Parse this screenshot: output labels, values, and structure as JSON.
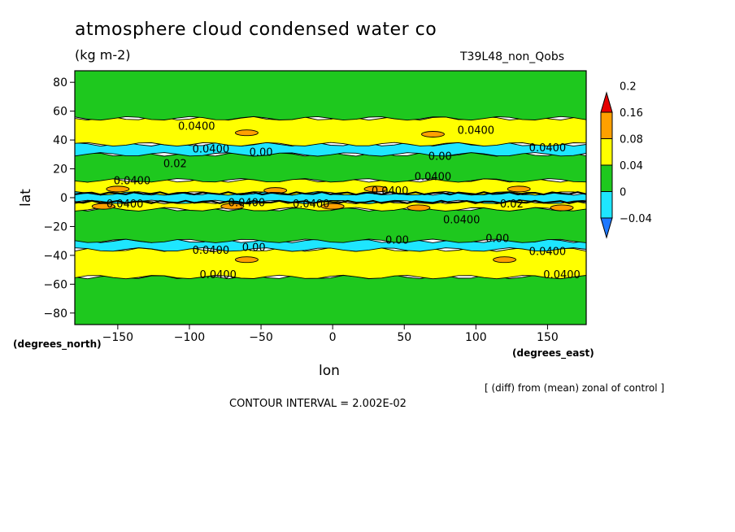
{
  "chart_data": {
    "type": "heatmap",
    "title": "atmosphere cloud condensed water co",
    "units": "(kg m-2)",
    "run_name": "T39L48_non_Qobs",
    "xlabel": "lon",
    "ylabel": "lat",
    "x_units": "(degrees_east)",
    "y_units": "(degrees_north)",
    "xlim": [
      -180,
      177
    ],
    "ylim": [
      -88,
      88
    ],
    "x_ticks": [
      -150,
      -100,
      -50,
      0,
      50,
      100,
      150
    ],
    "y_ticks": [
      -80,
      -60,
      -40,
      -20,
      0,
      20,
      40,
      60,
      80
    ],
    "colorbar": {
      "levels": [
        "-0.04",
        "0",
        "0.04",
        "0.08",
        "0.16",
        "0.2"
      ],
      "colors": [
        "#1e78ff",
        "#1ee6ff",
        "#1ec81e",
        "#ffff00",
        "#ffa000",
        "#e60000"
      ]
    },
    "bands": [
      {
        "lat_min": -88,
        "lat_max": -55,
        "value": 0.02
      },
      {
        "lat_min": -55,
        "lat_max": -36,
        "value": 0.05
      },
      {
        "lat_min": -36,
        "lat_max": -30,
        "value": -0.02
      },
      {
        "lat_min": -30,
        "lat_max": -8,
        "value": 0.02
      },
      {
        "lat_min": -8,
        "lat_max": -3,
        "value": 0.05
      },
      {
        "lat_min": -3,
        "lat_max": 3,
        "value": -0.02
      },
      {
        "lat_min": 3,
        "lat_max": 12,
        "value": 0.05
      },
      {
        "lat_min": 12,
        "lat_max": 30,
        "value": 0.02
      },
      {
        "lat_min": 30,
        "lat_max": 37,
        "value": -0.02
      },
      {
        "lat_min": 37,
        "lat_max": 55,
        "value": 0.05
      },
      {
        "lat_min": 55,
        "lat_max": 88,
        "value": 0.02
      }
    ],
    "patches": [
      {
        "lon": -70,
        "lat": -6,
        "value": 0.1
      },
      {
        "lon": -160,
        "lat": -6,
        "value": 0.1
      },
      {
        "lon": 0,
        "lat": -6,
        "value": 0.1
      },
      {
        "lon": 60,
        "lat": -7,
        "value": 0.1
      },
      {
        "lon": 160,
        "lat": -7,
        "value": 0.1
      },
      {
        "lon": -150,
        "lat": 6,
        "value": 0.1
      },
      {
        "lon": -40,
        "lat": 5,
        "value": 0.1
      },
      {
        "lon": 30,
        "lat": 6,
        "value": 0.1
      },
      {
        "lon": 130,
        "lat": 6,
        "value": 0.1
      },
      {
        "lon": -60,
        "lat": 45,
        "value": 0.1
      },
      {
        "lon": 70,
        "lat": 44,
        "value": 0.1
      },
      {
        "lon": -60,
        "lat": -43,
        "value": 0.1
      },
      {
        "lon": 120,
        "lat": -43,
        "value": 0.1
      }
    ],
    "contour_labels": [
      {
        "text": "0.0400",
        "lon": -95,
        "lat": 50
      },
      {
        "text": "0.0400",
        "lon": 100,
        "lat": 47
      },
      {
        "text": "0.0400",
        "lon": -85,
        "lat": 34
      },
      {
        "text": "0.00",
        "lon": -50,
        "lat": 32
      },
      {
        "text": "0.0400",
        "lon": 150,
        "lat": 35
      },
      {
        "text": "0.00",
        "lon": 75,
        "lat": 29
      },
      {
        "text": "0.02",
        "lon": -110,
        "lat": 24
      },
      {
        "text": "0.0400",
        "lon": -140,
        "lat": 12
      },
      {
        "text": "0.0400",
        "lon": 70,
        "lat": 15
      },
      {
        "text": "0.0400",
        "lon": 40,
        "lat": 5
      },
      {
        "text": "0.0400",
        "lon": -145,
        "lat": -4
      },
      {
        "text": "0.0400",
        "lon": -60,
        "lat": -3
      },
      {
        "text": "0.0400",
        "lon": -15,
        "lat": -4
      },
      {
        "text": "0.02",
        "lon": 125,
        "lat": -4
      },
      {
        "text": "0.0400",
        "lon": 90,
        "lat": -15
      },
      {
        "text": "0.00",
        "lon": 45,
        "lat": -29
      },
      {
        "text": "0.00",
        "lon": 115,
        "lat": -28
      },
      {
        "text": "0.0400",
        "lon": -85,
        "lat": -36
      },
      {
        "text": "0.00",
        "lon": -55,
        "lat": -34
      },
      {
        "text": "0.0400",
        "lon": 150,
        "lat": -37
      },
      {
        "text": "0.0400",
        "lon": -80,
        "lat": -53
      },
      {
        "text": "0.0400",
        "lon": 160,
        "lat": -53
      }
    ]
  },
  "annotations": {
    "note": "[ (diff) from (mean) zonal of control ]",
    "interval": "CONTOUR INTERVAL = 2.002E-02"
  }
}
